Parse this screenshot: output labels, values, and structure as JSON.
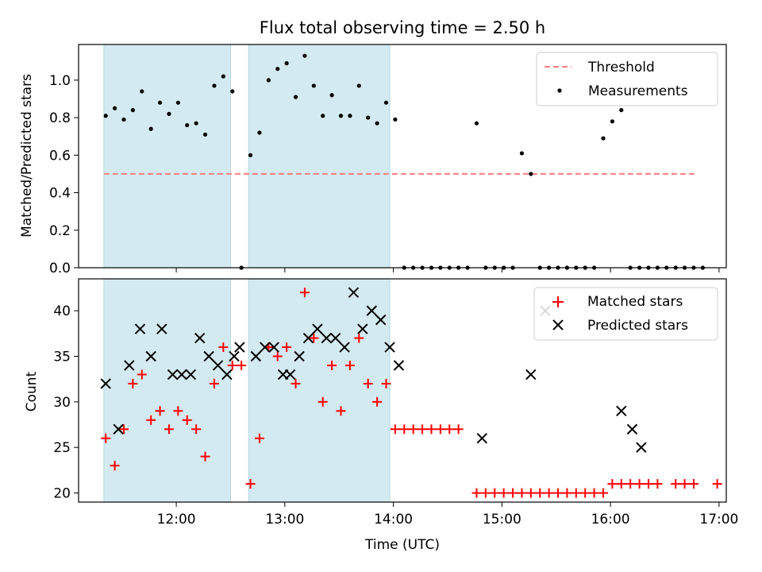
{
  "chart_data": [
    {
      "type": "scatter",
      "title": "Flux total observing time = 2.50 h",
      "xlabel": "",
      "ylabel": "Matched/Predicted stars",
      "ylim": [
        0,
        1.19
      ],
      "yticks": [
        "0.0",
        "0.2",
        "0.4",
        "0.6",
        "0.8",
        "1.0"
      ],
      "xlim": [
        "11:06",
        "17:04"
      ],
      "grid": false,
      "legend": "top-right",
      "shaded_intervals": [
        [
          "11:20",
          "12:30"
        ],
        [
          "12:40",
          "13:58"
        ]
      ],
      "threshold": {
        "name": "Threshold",
        "value": 0.5,
        "x_start": "11:20",
        "x_end": "16:48",
        "color": "#ff7f7f"
      },
      "series": [
        {
          "name": "Measurements",
          "color": "#000000",
          "points": [
            [
              "11:21",
              0.81
            ],
            [
              "11:26",
              0.85
            ],
            [
              "11:31",
              0.79
            ],
            [
              "11:36",
              0.84
            ],
            [
              "11:41",
              0.94
            ],
            [
              "11:46",
              0.74
            ],
            [
              "11:51",
              0.88
            ],
            [
              "11:56",
              0.82
            ],
            [
              "12:01",
              0.88
            ],
            [
              "12:06",
              0.76
            ],
            [
              "12:11",
              0.77
            ],
            [
              "12:16",
              0.71
            ],
            [
              "12:21",
              0.97
            ],
            [
              "12:26",
              1.02
            ],
            [
              "12:31",
              0.94
            ],
            [
              "12:36",
              0.0
            ],
            [
              "12:41",
              0.6
            ],
            [
              "12:46",
              0.72
            ],
            [
              "12:51",
              1.0
            ],
            [
              "12:56",
              1.06
            ],
            [
              "13:01",
              1.09
            ],
            [
              "13:06",
              0.91
            ],
            [
              "13:11",
              1.13
            ],
            [
              "13:16",
              0.97
            ],
            [
              "13:21",
              0.81
            ],
            [
              "13:26",
              0.92
            ],
            [
              "13:31",
              0.81
            ],
            [
              "13:36",
              0.81
            ],
            [
              "13:41",
              0.97
            ],
            [
              "13:46",
              0.8
            ],
            [
              "13:51",
              0.77
            ],
            [
              "13:56",
              0.88
            ],
            [
              "14:01",
              0.79
            ],
            [
              "14:06",
              0.0
            ],
            [
              "14:11",
              0.0
            ],
            [
              "14:16",
              0.0
            ],
            [
              "14:21",
              0.0
            ],
            [
              "14:26",
              0.0
            ],
            [
              "14:31",
              0.0
            ],
            [
              "14:36",
              0.0
            ],
            [
              "14:41",
              0.0
            ],
            [
              "14:46",
              0.77
            ],
            [
              "14:51",
              0.0
            ],
            [
              "14:56",
              0.0
            ],
            [
              "15:01",
              0.0
            ],
            [
              "15:06",
              0.0
            ],
            [
              "15:11",
              0.61
            ],
            [
              "15:16",
              0.5
            ],
            [
              "15:21",
              0.0
            ],
            [
              "15:26",
              0.0
            ],
            [
              "15:31",
              0.0
            ],
            [
              "15:36",
              0.0
            ],
            [
              "15:41",
              0.0
            ],
            [
              "15:46",
              0.0
            ],
            [
              "15:51",
              0.0
            ],
            [
              "15:56",
              0.69
            ],
            [
              "16:01",
              0.78
            ],
            [
              "16:06",
              0.84
            ],
            [
              "16:11",
              0.0
            ],
            [
              "16:16",
              0.0
            ],
            [
              "16:21",
              0.0
            ],
            [
              "16:26",
              0.0
            ],
            [
              "16:31",
              0.0
            ],
            [
              "16:36",
              0.0
            ],
            [
              "16:41",
              0.0
            ],
            [
              "16:46",
              0.0
            ],
            [
              "16:51",
              0.0
            ]
          ]
        }
      ]
    },
    {
      "type": "scatter",
      "xlabel": "Time (UTC)",
      "ylabel": "Count",
      "ylim": [
        19,
        43.5
      ],
      "yticks": [
        "20",
        "25",
        "30",
        "35",
        "40"
      ],
      "xlim": [
        "11:06",
        "17:04"
      ],
      "xticks": [
        "12:00",
        "13:00",
        "14:00",
        "15:00",
        "16:00",
        "17:00"
      ],
      "grid": false,
      "legend": "top-right",
      "shaded_intervals": [
        [
          "11:20",
          "12:30"
        ],
        [
          "12:40",
          "13:58"
        ]
      ],
      "series": [
        {
          "name": "Matched stars",
          "color": "#ff0000",
          "marker": "+",
          "points": [
            [
              "11:21",
              26
            ],
            [
              "11:26",
              23
            ],
            [
              "11:31",
              27
            ],
            [
              "11:36",
              32
            ],
            [
              "11:41",
              33
            ],
            [
              "11:46",
              28
            ],
            [
              "11:51",
              29
            ],
            [
              "11:56",
              27
            ],
            [
              "12:01",
              29
            ],
            [
              "12:06",
              28
            ],
            [
              "12:11",
              27
            ],
            [
              "12:16",
              24
            ],
            [
              "12:21",
              32
            ],
            [
              "12:26",
              36
            ],
            [
              "12:31",
              34
            ],
            [
              "12:36",
              34
            ],
            [
              "12:41",
              21
            ],
            [
              "12:46",
              26
            ],
            [
              "12:51",
              36
            ],
            [
              "12:56",
              35
            ],
            [
              "13:01",
              36
            ],
            [
              "13:06",
              32
            ],
            [
              "13:11",
              42
            ],
            [
              "13:16",
              37
            ],
            [
              "13:21",
              30
            ],
            [
              "13:26",
              34
            ],
            [
              "13:31",
              29
            ],
            [
              "13:36",
              34
            ],
            [
              "13:41",
              37
            ],
            [
              "13:46",
              32
            ],
            [
              "13:51",
              30
            ],
            [
              "13:56",
              32
            ],
            [
              "14:01",
              27
            ],
            [
              "14:06",
              27
            ],
            [
              "14:11",
              27
            ],
            [
              "14:16",
              27
            ],
            [
              "14:21",
              27
            ],
            [
              "14:26",
              27
            ],
            [
              "14:31",
              27
            ],
            [
              "14:36",
              27
            ],
            [
              "14:46",
              20
            ],
            [
              "14:51",
              20
            ],
            [
              "14:56",
              20
            ],
            [
              "15:01",
              20
            ],
            [
              "15:06",
              20
            ],
            [
              "15:11",
              20
            ],
            [
              "15:16",
              20
            ],
            [
              "15:21",
              20
            ],
            [
              "15:26",
              20
            ],
            [
              "15:31",
              20
            ],
            [
              "15:36",
              20
            ],
            [
              "15:41",
              20
            ],
            [
              "15:46",
              20
            ],
            [
              "15:51",
              20
            ],
            [
              "15:56",
              20
            ],
            [
              "16:01",
              21
            ],
            [
              "16:06",
              21
            ],
            [
              "16:11",
              21
            ],
            [
              "16:16",
              21
            ],
            [
              "16:21",
              21
            ],
            [
              "16:26",
              21
            ],
            [
              "16:36",
              21
            ],
            [
              "16:41",
              21
            ],
            [
              "16:46",
              21
            ],
            [
              "16:59",
              21
            ]
          ]
        },
        {
          "name": "Predicted stars",
          "color": "#000000",
          "marker": "x",
          "points": [
            [
              "11:21",
              32
            ],
            [
              "11:28",
              27
            ],
            [
              "11:34",
              34
            ],
            [
              "11:40",
              38
            ],
            [
              "11:46",
              35
            ],
            [
              "11:52",
              38
            ],
            [
              "11:58",
              33
            ],
            [
              "12:03",
              33
            ],
            [
              "12:08",
              33
            ],
            [
              "12:13",
              37
            ],
            [
              "12:18",
              35
            ],
            [
              "12:23",
              34
            ],
            [
              "12:28",
              33
            ],
            [
              "12:32",
              35
            ],
            [
              "12:35",
              36
            ],
            [
              "12:44",
              35
            ],
            [
              "12:49",
              36
            ],
            [
              "12:54",
              36
            ],
            [
              "12:59",
              33
            ],
            [
              "13:03",
              33
            ],
            [
              "13:08",
              35
            ],
            [
              "13:13",
              37
            ],
            [
              "13:18",
              38
            ],
            [
              "13:23",
              37
            ],
            [
              "13:28",
              37
            ],
            [
              "13:33",
              36
            ],
            [
              "13:38",
              42
            ],
            [
              "13:43",
              38
            ],
            [
              "13:48",
              40
            ],
            [
              "13:53",
              39
            ],
            [
              "13:58",
              36
            ],
            [
              "14:03",
              34
            ],
            [
              "14:49",
              26
            ],
            [
              "15:16",
              33
            ],
            [
              "15:24",
              40
            ],
            [
              "16:06",
              29
            ],
            [
              "16:12",
              27
            ],
            [
              "16:17",
              25
            ]
          ]
        }
      ]
    }
  ]
}
